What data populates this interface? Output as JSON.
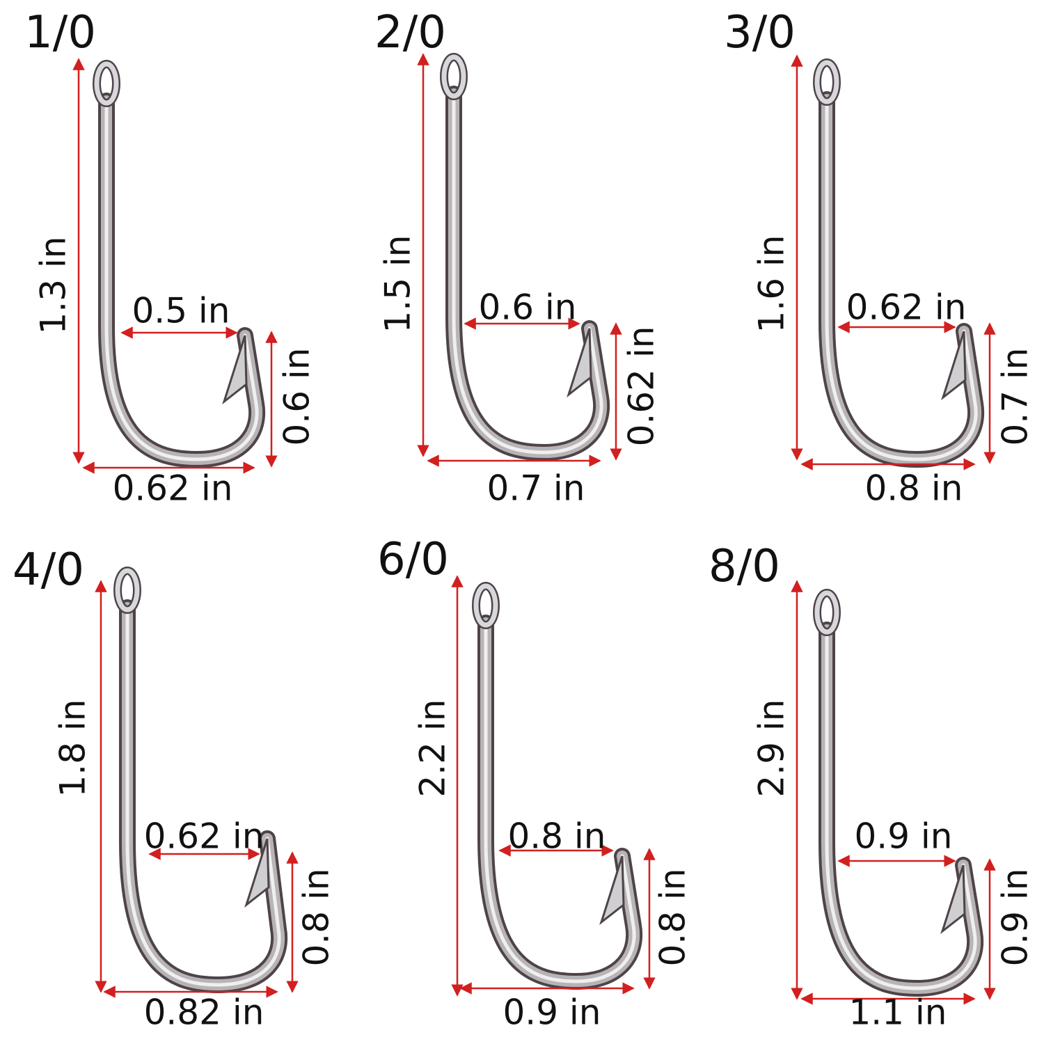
{
  "colors": {
    "dimension_line": "#d21f1f",
    "hook_light": "#e7e7ea",
    "hook_mid": "#a9a9ae",
    "hook_dark": "#5a4a4a",
    "text": "#111111"
  },
  "hooks": [
    {
      "size": "1/0",
      "total_length": "1.3 in",
      "gap": "0.5 in",
      "point_height": "0.6 in",
      "width": "0.62 in"
    },
    {
      "size": "2/0",
      "total_length": "1.5 in",
      "gap": "0.6 in",
      "point_height": "0.62 in",
      "width": "0.7 in"
    },
    {
      "size": "3/0",
      "total_length": "1.6 in",
      "gap": "0.62 in",
      "point_height": "0.7 in",
      "width": "0.8 in"
    },
    {
      "size": "4/0",
      "total_length": "1.8 in",
      "gap": "0.62 in",
      "point_height": "0.8 in",
      "width": "0.82 in"
    },
    {
      "size": "6/0",
      "total_length": "2.2 in",
      "gap": "0.8 in",
      "point_height": "0.8 in",
      "width": "0.9 in"
    },
    {
      "size": "8/0",
      "total_length": "2.9 in",
      "gap": "0.9 in",
      "point_height": "0.9 in",
      "width": "1.1 in"
    }
  ]
}
